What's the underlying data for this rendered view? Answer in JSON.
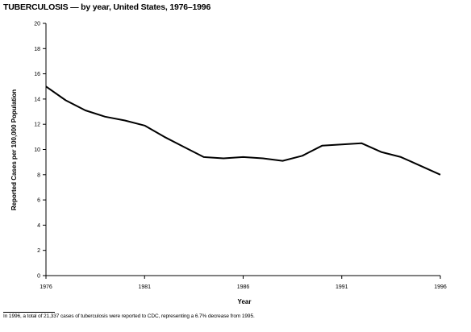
{
  "chart_data": {
    "type": "line",
    "title": "TUBERCULOSIS — by year, United States, 1976–1996",
    "xlabel": "Year",
    "ylabel": "Reported Cases per 100,000 Population",
    "xlim": [
      1976,
      1996
    ],
    "ylim": [
      0,
      20
    ],
    "x_ticks": [
      1976,
      1981,
      1986,
      1991,
      1996
    ],
    "y_ticks": [
      0,
      2,
      4,
      6,
      8,
      10,
      12,
      14,
      16,
      18,
      20
    ],
    "grid": false,
    "legend": "none",
    "series": [
      {
        "x": [
          1976,
          1977,
          1978,
          1979,
          1980,
          1981,
          1982,
          1983,
          1984,
          1985,
          1986,
          1987,
          1988,
          1989,
          1990,
          1991,
          1992,
          1993,
          1994,
          1995,
          1996
        ],
        "values": [
          15.0,
          13.9,
          13.1,
          12.6,
          12.3,
          11.9,
          11.0,
          10.2,
          9.4,
          9.3,
          9.4,
          9.3,
          9.1,
          9.5,
          10.3,
          10.4,
          10.5,
          9.8,
          9.4,
          8.7,
          8.0
        ]
      }
    ],
    "line_color": "#000000"
  },
  "footnote": "In 1996, a total of 21,337 cases of tuberculosis were reported to CDC, representing a 6.7% decrease from 1995."
}
